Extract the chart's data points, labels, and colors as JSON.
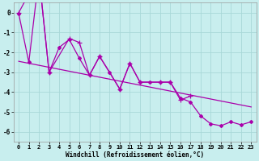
{
  "xlabel": "Windchill (Refroidissement éolien,°C)",
  "background_color": "#c8eeee",
  "grid_color": "#a8d8d8",
  "line_color": "#aa00aa",
  "ylim": [
    -6.5,
    0.5
  ],
  "xlim": [
    -0.5,
    23.5
  ],
  "yticks": [
    0,
    -1,
    -2,
    -3,
    -4,
    -5,
    -6
  ],
  "xticks": [
    0,
    1,
    2,
    3,
    4,
    5,
    6,
    7,
    8,
    9,
    10,
    11,
    12,
    13,
    14,
    15,
    16,
    17,
    18,
    19,
    20,
    21,
    22,
    23
  ],
  "series_a_x": [
    0,
    2,
    3,
    5,
    6,
    7,
    8,
    10,
    11,
    12,
    14,
    15,
    16,
    17
  ],
  "series_a_y": [
    0.0,
    1.9,
    -3.0,
    -1.3,
    -1.5,
    -3.15,
    -2.2,
    -3.85,
    -2.55,
    -3.5,
    -3.5,
    -3.5,
    -4.4,
    -4.2
  ],
  "series_b_x": [
    0,
    1,
    2,
    3,
    4,
    5,
    6,
    7,
    8,
    9,
    10,
    11,
    12,
    13,
    14,
    15,
    16,
    17,
    18,
    19,
    20,
    21,
    22,
    23
  ],
  "series_b_y": [
    -0.05,
    -2.5,
    1.85,
    -3.0,
    -1.75,
    -1.35,
    -2.3,
    -3.15,
    -2.2,
    -3.0,
    -3.85,
    -2.55,
    -3.5,
    -3.5,
    -3.5,
    -3.5,
    -4.3,
    -4.5,
    -5.2,
    -5.6,
    -5.7,
    -5.5,
    -5.65,
    -5.5
  ],
  "trend_x": [
    0,
    23
  ],
  "trend_y": [
    -2.45,
    -4.75
  ],
  "xlabel_fontsize": 5.5,
  "tick_fontsize": 5.0
}
